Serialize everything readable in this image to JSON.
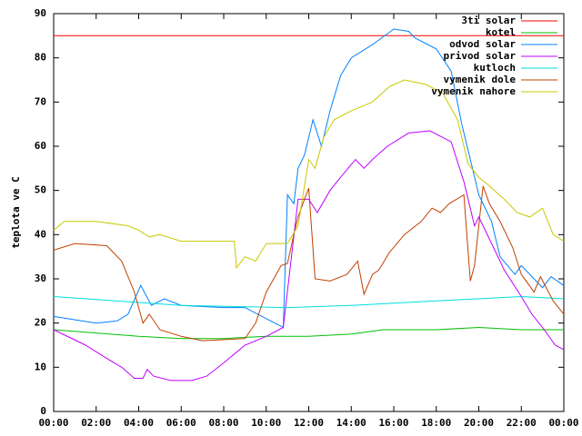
{
  "chart_data": {
    "type": "line",
    "y_label": "teplota ve C",
    "xlim": [
      0,
      24
    ],
    "ylim": [
      0,
      90
    ],
    "xticks": [
      {
        "value": 0,
        "label": "00:00"
      },
      {
        "value": 2,
        "label": "02:00"
      },
      {
        "value": 4,
        "label": "04:00"
      },
      {
        "value": 6,
        "label": "06:00"
      },
      {
        "value": 8,
        "label": "08:00"
      },
      {
        "value": 10,
        "label": "10:00"
      },
      {
        "value": 12,
        "label": "12:00"
      },
      {
        "value": 14,
        "label": "14:00"
      },
      {
        "value": 16,
        "label": "16:00"
      },
      {
        "value": 18,
        "label": "18:00"
      },
      {
        "value": 20,
        "label": "20:00"
      },
      {
        "value": 22,
        "label": "22:00"
      },
      {
        "value": 24,
        "label": "00:00"
      }
    ],
    "yticks": [
      0,
      10,
      20,
      30,
      40,
      50,
      60,
      70,
      80,
      90
    ],
    "legend": "top-right",
    "series": [
      {
        "name": "3ti solar",
        "color": "#ff0000",
        "x": [
          0,
          24
        ],
        "values": [
          85,
          85
        ]
      },
      {
        "name": "kotel",
        "color": "#00c000",
        "x": [
          0,
          4,
          6,
          8,
          10,
          12,
          14,
          15.5,
          18,
          20,
          22,
          24
        ],
        "values": [
          18.5,
          17,
          16.5,
          16.5,
          17,
          17,
          17.5,
          18.5,
          18.5,
          19,
          18.5,
          18.5
        ]
      },
      {
        "name": "odvod solar",
        "color": "#0080ff",
        "x": [
          0,
          2,
          3,
          3.5,
          4.1,
          4.6,
          5.2,
          6,
          8,
          9,
          10,
          10.8,
          11,
          11.3,
          11.5,
          11.8,
          12.2,
          12.6,
          13,
          13.5,
          14,
          15,
          16,
          16.7,
          17,
          18,
          18.7,
          19.2,
          19.6,
          20,
          20.6,
          21,
          21.7,
          22,
          23,
          23.4,
          24
        ],
        "values": [
          21.5,
          20,
          20.5,
          22,
          28.5,
          24,
          25.5,
          24,
          23.5,
          23.5,
          21,
          19,
          49,
          47,
          55,
          58,
          66,
          60,
          68,
          76,
          80,
          83,
          86.5,
          86,
          84.5,
          82,
          77,
          65,
          57,
          49,
          43,
          35,
          31,
          33,
          28,
          30.5,
          28.5
        ]
      },
      {
        "name": "privod solar",
        "color": "#c000ff",
        "x": [
          0,
          1.5,
          2.5,
          3.2,
          3.8,
          4.2,
          4.4,
          4.7,
          5.5,
          6.5,
          7.2,
          8,
          9,
          10,
          10.8,
          11.5,
          12,
          12.4,
          13,
          13.5,
          14.2,
          14.6,
          15,
          15.7,
          16.7,
          17.7,
          18.7,
          19.3,
          19.8,
          20,
          20.7,
          21.2,
          22,
          22.5,
          23,
          23.6,
          24
        ],
        "values": [
          18.5,
          15,
          12,
          10,
          7.5,
          7.5,
          9.5,
          8,
          7,
          7,
          8,
          11,
          15,
          17,
          19,
          48,
          48,
          45,
          50,
          53,
          57,
          55,
          57,
          60,
          63,
          63.5,
          61,
          52,
          42,
          44,
          37,
          32,
          26,
          22,
          19,
          15,
          14
        ]
      },
      {
        "name": "kutloch",
        "color": "#00dddd",
        "x": [
          0,
          6,
          11,
          14,
          18,
          22,
          24
        ],
        "values": [
          26,
          24,
          23.5,
          24,
          25,
          26,
          25.5
        ]
      },
      {
        "name": "vymenik dole",
        "color": "#c04000",
        "x": [
          0,
          1,
          2.5,
          3.2,
          3.8,
          4.2,
          4.5,
          5,
          6,
          7,
          9,
          9.5,
          10,
          10.7,
          11,
          11.3,
          11.5,
          11.8,
          12,
          12.3,
          13,
          13.8,
          14.3,
          14.6,
          15,
          15.3,
          15.8,
          16.5,
          17.3,
          17.8,
          18.2,
          18.6,
          19.3,
          19.6,
          19.8,
          20.2,
          20.5,
          21,
          21.6,
          22,
          22.6,
          22.9,
          23.5,
          24
        ],
        "values": [
          36.5,
          38,
          37.5,
          34,
          27,
          20,
          22,
          18.5,
          17,
          16,
          16.5,
          20,
          27,
          33,
          33.5,
          40,
          44,
          48,
          50.5,
          30,
          29.5,
          31,
          34,
          26.5,
          31,
          32,
          36,
          40,
          43,
          46,
          45,
          47,
          49,
          29.5,
          33,
          51,
          47,
          43,
          37,
          31,
          27,
          30.5,
          25,
          22
        ]
      },
      {
        "name": "vymenik nahore",
        "color": "#c8c800",
        "x": [
          0,
          0.5,
          2,
          3.5,
          4,
          4.5,
          5,
          6,
          8.5,
          8.6,
          9,
          9.5,
          10,
          11,
          11.5,
          12,
          12.3,
          12.7,
          13.2,
          14,
          15,
          15.8,
          16.5,
          17.5,
          18.3,
          19,
          19.5,
          20,
          20.5,
          21.2,
          21.8,
          22.4,
          23,
          23.5,
          24
        ],
        "values": [
          41,
          43,
          43,
          42,
          41,
          39.5,
          40,
          38.5,
          38.5,
          32.5,
          35,
          34,
          38,
          38,
          42,
          57,
          55,
          62,
          66,
          68,
          70,
          73.5,
          75,
          74,
          72,
          66,
          56,
          53,
          51,
          48,
          45,
          44,
          46,
          40,
          38.5
        ]
      }
    ]
  }
}
